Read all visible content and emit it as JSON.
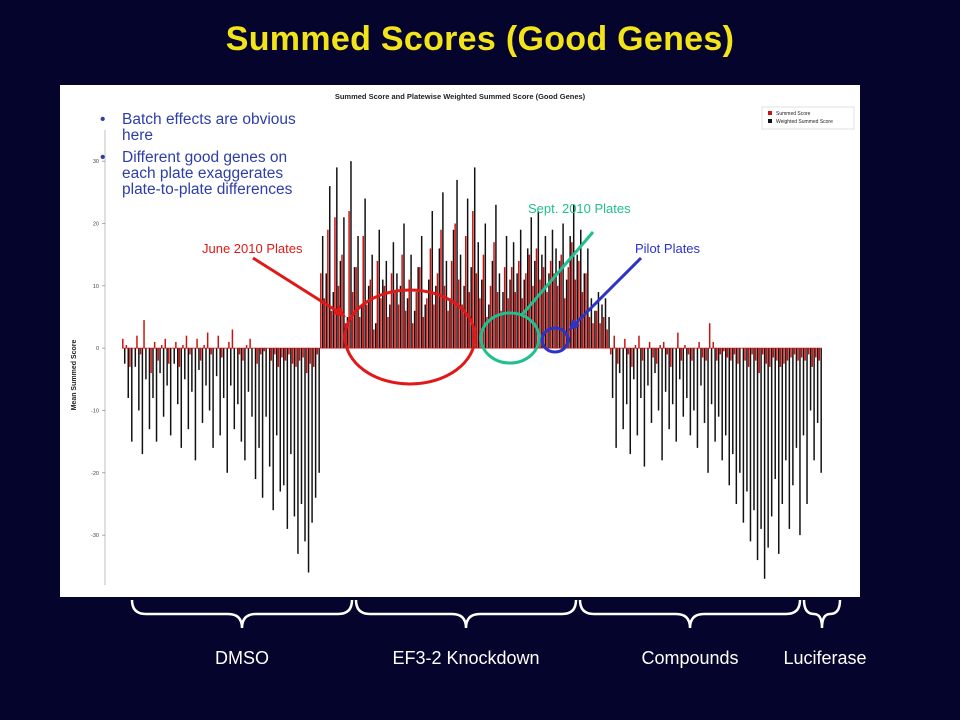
{
  "slide": {
    "title": "Summed Scores (Good Genes)",
    "background": "#04042c",
    "title_color": "#f3e41a"
  },
  "bullets": [
    "Batch effects are obvious here",
    "Different good genes on each plate exaggerates plate-to-plate differences"
  ],
  "annotations": {
    "june": {
      "label": "June 2010 Plates",
      "color": "#e01818"
    },
    "sept": {
      "label": "Sept. 2010 Plates",
      "color": "#1fbf90"
    },
    "pilot": {
      "label": "Pilot Plates",
      "color": "#2b33c8"
    }
  },
  "groups": [
    "DMSO",
    "EF3-2 Knockdown",
    "Compounds",
    "Luciferase"
  ],
  "chart_data": {
    "type": "bar",
    "title": "Summed Score and Platewise Weighted Summed Score (Good Genes)",
    "xlabel": "",
    "ylabel": "Mean Summed Score",
    "ylim": [
      -38,
      35
    ],
    "yticks": [
      -30,
      -20,
      -10,
      0,
      10,
      20,
      30
    ],
    "legend_position": "top-right",
    "grid": false,
    "colors": {
      "summed": "#cc1111",
      "weighted": "#111111"
    },
    "segments": [
      {
        "group": "DMSO",
        "summed": [
          1.5,
          0.5,
          -3,
          0,
          2,
          -1,
          4.5,
          0,
          -4,
          1,
          -2,
          0.5,
          1.5,
          -2.5,
          0,
          1,
          -3,
          0.5,
          2,
          -1,
          0,
          1.5,
          -2,
          0.5,
          2.5,
          -1,
          0,
          2,
          -1.5,
          0,
          1,
          3,
          0,
          -1,
          -2,
          0.5,
          1.5,
          0,
          -2.5,
          -1,
          -0.5,
          0,
          -2,
          -1,
          -3,
          -1.5,
          -2,
          -1,
          -2.5,
          -3,
          -2,
          -1.5,
          -4,
          -2.5,
          -3,
          -1
        ],
        "weighted": [
          -2.5,
          -8,
          -15,
          -3,
          -10,
          -17,
          -5,
          -13,
          -8,
          -15,
          -4,
          -11,
          -6,
          -14,
          -2.5,
          -9,
          -16,
          -5,
          -13,
          -7,
          -18,
          -3.5,
          -12,
          -6,
          -10,
          -16,
          -4.5,
          -14,
          -8,
          -20,
          -6,
          -13,
          -9,
          -15,
          -18,
          -7,
          -11,
          -21,
          -16,
          -24,
          -11,
          -19,
          -26,
          -14,
          -23,
          -22,
          -29,
          -17,
          -27,
          -33,
          -25,
          -31,
          -36,
          -28,
          -24,
          -20
        ]
      },
      {
        "group": "EF3-2 June 2010",
        "summed": [
          12,
          8,
          19,
          6,
          21,
          10,
          15,
          4,
          22,
          9,
          13,
          5,
          18,
          7,
          11,
          3,
          14,
          8,
          10,
          5,
          12,
          9,
          7,
          15,
          6,
          11,
          4,
          9,
          13,
          5,
          8,
          16,
          7,
          12,
          19,
          10,
          6,
          14,
          20,
          11,
          7,
          18,
          9,
          22,
          12,
          8,
          15,
          5,
          10,
          17,
          9,
          6,
          13,
          8
        ],
        "weighted": [
          18,
          12,
          26,
          9,
          29,
          14,
          21,
          5,
          30,
          13,
          18,
          7,
          24,
          10,
          15,
          4,
          19,
          11,
          14,
          7,
          17,
          12,
          10,
          20,
          8,
          15,
          6,
          13,
          18,
          7,
          11,
          22,
          10,
          16,
          25,
          14,
          8,
          19,
          27,
          15,
          10,
          24,
          13,
          29,
          17,
          11,
          20,
          7,
          14,
          23,
          12,
          9,
          18,
          11
        ]
      },
      {
        "group": "EF3-2 Sept. 2010",
        "summed": [
          13,
          9,
          14,
          8,
          12,
          15,
          10,
          16,
          11,
          13,
          9,
          14,
          12,
          10,
          15,
          8,
          13,
          17,
          11,
          14,
          9,
          12
        ],
        "weighted": [
          17,
          12,
          19,
          11,
          16,
          21,
          14,
          22,
          15,
          18,
          12,
          19,
          16,
          14,
          20,
          11,
          18,
          23,
          15,
          19,
          12,
          16
        ]
      },
      {
        "group": "Pilot",
        "summed": [
          5,
          4,
          6,
          4,
          5,
          3
        ],
        "weighted": [
          8,
          6,
          9,
          7,
          8,
          5
        ]
      },
      {
        "group": "Compounds",
        "summed": [
          -1,
          2,
          -2.5,
          0,
          1.5,
          -1,
          -3,
          0.5,
          2,
          -2,
          0,
          1,
          -1.5,
          -2.5,
          0.5,
          1,
          -1,
          -3,
          0,
          2.5,
          -2,
          0.5,
          -1,
          -2,
          0,
          1,
          -1.5,
          -2,
          4,
          1,
          -2,
          -1,
          -0.5,
          -1.5,
          -2,
          -1,
          -2.5,
          0,
          -2,
          -3,
          -1,
          -2,
          -4,
          -1,
          -2.5,
          -3,
          -1.5,
          -2,
          -3,
          -2.5,
          -2,
          -1.5,
          -1,
          -2
        ],
        "weighted": [
          -8,
          -16,
          -4,
          -13,
          -9,
          -17,
          -5,
          -14,
          -8,
          -19,
          -6,
          -12,
          -4,
          -10,
          -18,
          -7,
          -13,
          -9,
          -15,
          -5,
          -11,
          -8,
          -14,
          -10,
          -16,
          -6,
          -12,
          -20,
          -9,
          -15,
          -11,
          -18,
          -14,
          -22,
          -17,
          -25,
          -20,
          -28,
          -23,
          -31,
          -26,
          -34,
          -29,
          -37,
          -32,
          -27,
          -21,
          -33,
          -25,
          -18,
          -29,
          -22,
          -16,
          -30
        ]
      },
      {
        "group": "Luciferase",
        "summed": [
          -1.5,
          -2,
          -1,
          -3,
          -1.5,
          -2
        ],
        "weighted": [
          -14,
          -25,
          -10,
          -18,
          -12,
          -20
        ]
      }
    ]
  }
}
